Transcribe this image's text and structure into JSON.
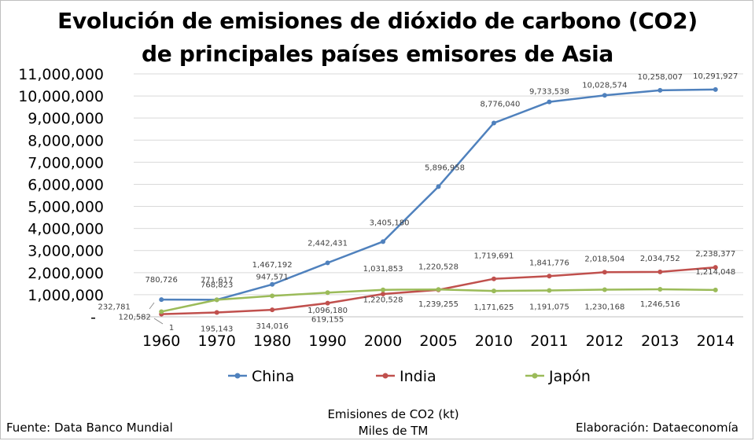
{
  "title_line1": "Evolución de emisiones de dióxido de carbono (CO2)",
  "title_line2": "de  principales países emisores de Asia",
  "source": "Fuente: Data Banco Mundial",
  "xlabel_line1": "Emisiones de CO2 (kt)",
  "xlabel_line2": "Miles de TM",
  "credit": "Elaboración: Dataeconomía",
  "chart_data": {
    "type": "line",
    "categories": [
      "1960",
      "1970",
      "1980",
      "1990",
      "2000",
      "2005",
      "2010",
      "2011",
      "2012",
      "2013",
      "2014"
    ],
    "y_ticks": [
      "-",
      "1,000,000",
      "2,000,000",
      "3,000,000",
      "4,000,000",
      "5,000,000",
      "6,000,000",
      "7,000,000",
      "8,000,000",
      "9,000,000",
      "10,000,000",
      "11,000,000"
    ],
    "ylim": [
      0,
      11000000
    ],
    "grid": true,
    "legend_position": "bottom",
    "series": [
      {
        "name": "China",
        "color": "#4f81bd",
        "values": [
          780726,
          771617,
          1467192,
          2442431,
          3405180,
          5896958,
          8776040,
          9733538,
          10028574,
          10258007,
          10291927
        ],
        "labels": [
          "780,726",
          "771,617",
          "1,467,192",
          "2,442,431",
          "3,405,180",
          "5,896,958",
          "8,776,040",
          "9,733,538",
          "10,028,574",
          "10,258,007",
          "10,291,927"
        ]
      },
      {
        "name": "India",
        "color": "#c0504d",
        "values": [
          120582,
          195143,
          314016,
          619155,
          1031853,
          1220528,
          1719691,
          1841776,
          2018504,
          2034752,
          2238377
        ],
        "labels": [
          "120,582",
          "195,143",
          "314,016",
          "619,155",
          "1,031,853",
          "1,220,528",
          "1,719,691",
          "1,841,776",
          "2,018,504",
          "2,034,752",
          "2,238,377"
        ]
      },
      {
        "name": "Japón",
        "color": "#9bbb59",
        "values": [
          232781,
          768823,
          947571,
          1096180,
          1220528,
          1239255,
          1171625,
          1191075,
          1230168,
          1246516,
          1214048
        ],
        "labels": [
          "232,781",
          "768,823",
          "947,571",
          "1,096,180",
          "1,220,528",
          "1,239,255",
          "1,171,625",
          "1,191,075",
          "1,230,168",
          "1,246,516",
          "1,214,048"
        ]
      }
    ],
    "extra_annotations": [
      "1"
    ]
  }
}
